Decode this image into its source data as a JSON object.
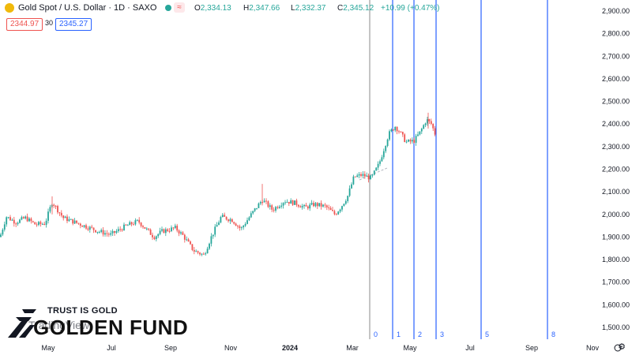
{
  "header": {
    "symbol": "Gold Spot / U.S. Dollar · 1D · SAXO",
    "wave_icon": "≈",
    "ohlc": {
      "o_label": "O",
      "o": "2,334.13",
      "h_label": "H",
      "h": "2,347.66",
      "l_label": "L",
      "l": "2,332.37",
      "c_label": "C",
      "c": "2,345.12",
      "change": "+10.99 (+0.47%)"
    }
  },
  "trade": {
    "sell": "2344.97",
    "qty": "30",
    "buy": "2345.27"
  },
  "colors": {
    "up": "#26a69a",
    "down": "#ef5350",
    "fib_line": "#2962ff",
    "cursor_line": "#9e9e9e"
  },
  "price_axis": {
    "labels": [
      "2,900.00",
      "2,800.00",
      "2,700.00",
      "2,600.00",
      "2,500.00",
      "2,400.00",
      "2,300.00",
      "2,200.00",
      "2,100.00",
      "2,000.00",
      "1,900.00",
      "1,800.00",
      "1,700.00",
      "1,600.00",
      "1,500.00"
    ]
  },
  "time_axis": {
    "labels": [
      "May",
      "Jul",
      "Sep",
      "Nov",
      "2024",
      "Mar",
      "May",
      "Jul",
      "Sep",
      "Nov"
    ]
  },
  "fib_time_zones": {
    "labels": [
      "0",
      "1",
      "2",
      "3",
      "5",
      "8"
    ]
  },
  "watermark": {
    "tagline": "TRUST IS GOLD",
    "brand": "GOLDEN FUND",
    "platform": "TradingView"
  },
  "settings_icon": "gear-icon",
  "chart_data": {
    "type": "candlestick",
    "ylim": [
      1450,
      2950
    ],
    "series": [
      {
        "name": "Gold Spot / U.S. Dollar",
        "x": [
          "2023-04",
          "2023-05",
          "2023-06",
          "2023-07",
          "2023-08",
          "2023-09",
          "2023-10",
          "2023-11",
          "2023-12",
          "2024-01",
          "2024-02",
          "2024-03",
          "2024-04",
          "2024-05"
        ],
        "close": [
          1990,
          1962,
          1920,
          1960,
          1940,
          1870,
          1985,
          2035,
          2065,
          2040,
          2045,
          2230,
          2305,
          2345
        ]
      }
    ]
  }
}
